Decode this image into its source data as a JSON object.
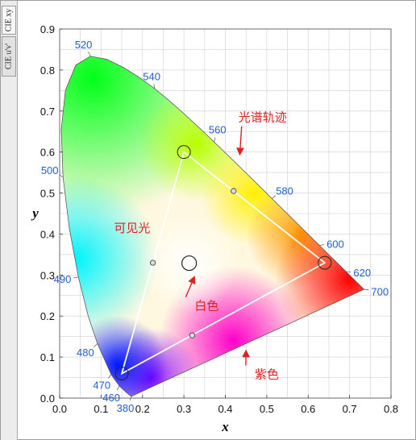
{
  "tabs": [
    {
      "label": "CIE xy",
      "active": true
    },
    {
      "label": "CIE u'v'",
      "active": false
    }
  ],
  "chart_data": {
    "type": "scatter",
    "title": "",
    "xlabel": "x",
    "ylabel": "y",
    "xlim": [
      0,
      0.8
    ],
    "ylim": [
      0,
      0.9
    ],
    "grid": true,
    "x_tick_labels": [
      "0.0",
      "0.1",
      "0.2",
      "0.3",
      "0.4",
      "0.5",
      "0.6",
      "0.7",
      "0.8"
    ],
    "y_tick_labels": [
      "0.0",
      "0.1",
      "0.2",
      "0.3",
      "0.4",
      "0.5",
      "0.6",
      "0.7",
      "0.8",
      "0.9"
    ],
    "spectral_locus": [
      {
        "x": 0.1741,
        "y": 0.005
      },
      {
        "x": 0.1733,
        "y": 0.0048
      },
      {
        "x": 0.1714,
        "y": 0.0051
      },
      {
        "x": 0.1689,
        "y": 0.0069
      },
      {
        "x": 0.1644,
        "y": 0.0109
      },
      {
        "x": 0.1566,
        "y": 0.0177
      },
      {
        "x": 0.144,
        "y": 0.0297
      },
      {
        "x": 0.1241,
        "y": 0.0578
      },
      {
        "x": 0.0913,
        "y": 0.1327
      },
      {
        "x": 0.0687,
        "y": 0.2007
      },
      {
        "x": 0.0454,
        "y": 0.295
      },
      {
        "x": 0.0235,
        "y": 0.4127
      },
      {
        "x": 0.0082,
        "y": 0.5384
      },
      {
        "x": 0.0039,
        "y": 0.6548
      },
      {
        "x": 0.0139,
        "y": 0.7502
      },
      {
        "x": 0.0389,
        "y": 0.812
      },
      {
        "x": 0.0743,
        "y": 0.8338
      },
      {
        "x": 0.1142,
        "y": 0.8262
      },
      {
        "x": 0.1547,
        "y": 0.8059
      },
      {
        "x": 0.1929,
        "y": 0.7816
      },
      {
        "x": 0.2296,
        "y": 0.7543
      },
      {
        "x": 0.2658,
        "y": 0.7243
      },
      {
        "x": 0.3016,
        "y": 0.6923
      },
      {
        "x": 0.3373,
        "y": 0.6589
      },
      {
        "x": 0.3731,
        "y": 0.6245
      },
      {
        "x": 0.4087,
        "y": 0.5896
      },
      {
        "x": 0.4441,
        "y": 0.5547
      },
      {
        "x": 0.4788,
        "y": 0.5202
      },
      {
        "x": 0.5125,
        "y": 0.4866
      },
      {
        "x": 0.5448,
        "y": 0.4544
      },
      {
        "x": 0.5752,
        "y": 0.4242
      },
      {
        "x": 0.6029,
        "y": 0.3965
      },
      {
        "x": 0.627,
        "y": 0.3725
      },
      {
        "x": 0.6482,
        "y": 0.3514
      },
      {
        "x": 0.6658,
        "y": 0.334
      },
      {
        "x": 0.6801,
        "y": 0.3197
      },
      {
        "x": 0.6915,
        "y": 0.3083
      },
      {
        "x": 0.7006,
        "y": 0.2993
      },
      {
        "x": 0.714,
        "y": 0.2859
      },
      {
        "x": 0.7347,
        "y": 0.2653
      }
    ],
    "wavelength_labels": [
      {
        "text": "380",
        "x": 0.1741,
        "y": 0.005
      },
      {
        "text": "460",
        "x": 0.144,
        "y": 0.0297
      },
      {
        "text": "470",
        "x": 0.1241,
        "y": 0.0578
      },
      {
        "text": "480",
        "x": 0.0913,
        "y": 0.1327
      },
      {
        "text": "490",
        "x": 0.0454,
        "y": 0.295
      },
      {
        "text": "500",
        "x": 0.0082,
        "y": 0.5384
      },
      {
        "text": "520",
        "x": 0.0743,
        "y": 0.8338
      },
      {
        "text": "540",
        "x": 0.2296,
        "y": 0.7543
      },
      {
        "text": "560",
        "x": 0.3731,
        "y": 0.6245
      },
      {
        "text": "580",
        "x": 0.5125,
        "y": 0.4866
      },
      {
        "text": "600",
        "x": 0.627,
        "y": 0.3725
      },
      {
        "text": "620",
        "x": 0.6915,
        "y": 0.3083
      },
      {
        "text": "700",
        "x": 0.7347,
        "y": 0.2653
      }
    ],
    "gamut_triangle": [
      {
        "x": 0.64,
        "y": 0.33
      },
      {
        "x": 0.3,
        "y": 0.6
      },
      {
        "x": 0.15,
        "y": 0.06
      }
    ],
    "gamut_midpoints": [
      {
        "x": 0.42,
        "y": 0.505
      },
      {
        "x": 0.225,
        "y": 0.33
      },
      {
        "x": 0.32,
        "y": 0.153
      }
    ],
    "white_point": {
      "x": 0.3127,
      "y": 0.329
    },
    "annotations": [
      {
        "text": "光谱轨迹",
        "x": 0.49,
        "y": 0.675,
        "arrow_to": {
          "x": 0.435,
          "y": 0.595
        }
      },
      {
        "text": "可见光",
        "x": 0.175,
        "y": 0.405
      },
      {
        "text": "白色",
        "x": 0.355,
        "y": 0.215,
        "arrow_to": {
          "x": 0.325,
          "y": 0.295
        }
      },
      {
        "text": "紫色",
        "x": 0.5,
        "y": 0.048,
        "arrow_to": {
          "x": 0.45,
          "y": 0.115
        }
      }
    ],
    "colors": {
      "annotation": "#dd2222",
      "wavelength_label": "#1f5fcc",
      "gamut": "#ffffff",
      "grid": "#cfcfcf",
      "frame": "#6a6a6a"
    }
  }
}
